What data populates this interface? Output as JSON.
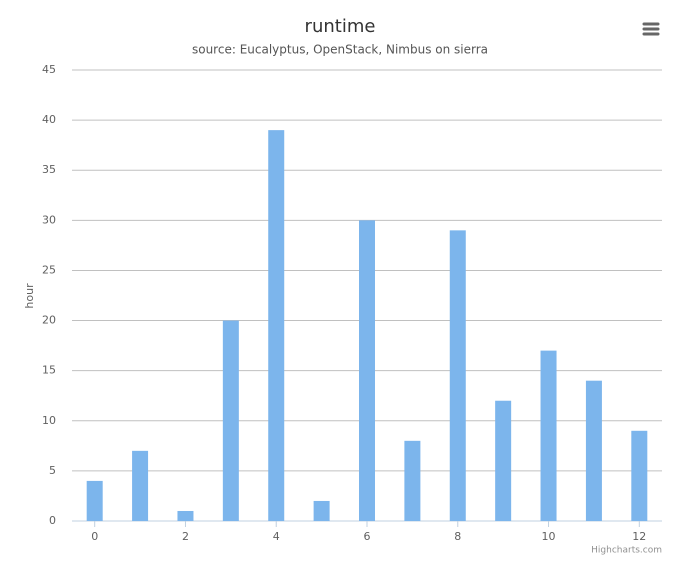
{
  "chart_data": {
    "type": "bar",
    "title": "runtime",
    "subtitle": "source: Eucalyptus, OpenStack, Nimbus on sierra",
    "y_label": "hour",
    "credits": "Highcharts.com",
    "x": [
      0,
      1,
      2,
      3,
      4,
      5,
      6,
      7,
      8,
      9,
      10,
      11,
      12
    ],
    "values": [
      4,
      7,
      1,
      20,
      39,
      2,
      30,
      8,
      29,
      12,
      17,
      14,
      9
    ],
    "color": "#7cb5ec",
    "xlim": [
      -0.5,
      12.5
    ],
    "xticks": [
      0,
      2,
      4,
      6,
      8,
      10,
      12
    ],
    "ylim": [
      0,
      45
    ],
    "yticks": [
      0,
      5,
      10,
      15,
      20,
      25,
      30,
      35,
      40,
      45
    ],
    "grid": true
  }
}
